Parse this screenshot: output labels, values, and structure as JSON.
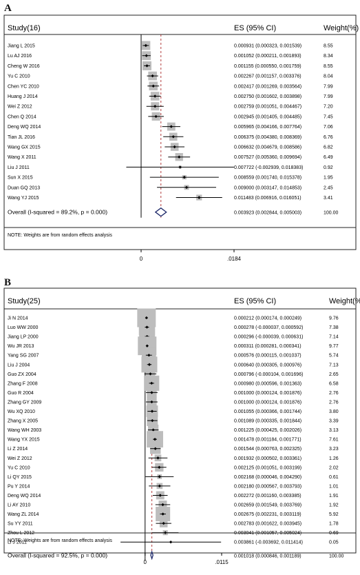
{
  "chart_data": [
    {
      "type": "forest",
      "panel_label": "A",
      "header": {
        "study": "Study(16)",
        "es": "ES (95% CI)",
        "weight": "Weight(%)"
      },
      "xticks": [
        "0",
        ".0184"
      ],
      "xtick_values": [
        0,
        0.0184
      ],
      "xlim": [
        -0.003,
        0.0184
      ],
      "overall_line": 0.003923,
      "studies": [
        {
          "name": "Jiang L 2015",
          "es": 0.000931,
          "lo": 0.000323,
          "hi": 0.001539,
          "ci": "0.000931 (0.000323, 0.001539)",
          "weight": "8.55"
        },
        {
          "name": "Lu AJ 2016",
          "es": 0.001052,
          "lo": 0.000211,
          "hi": 0.001893,
          "ci": "0.001052 (0.000211, 0.001893)",
          "weight": "8.34"
        },
        {
          "name": "Cheng W 2016",
          "es": 0.001155,
          "lo": 0.00055,
          "hi": 0.001759,
          "ci": "0.001155 (0.000550, 0.001759)",
          "weight": "8.55"
        },
        {
          "name": "Yu C 2010",
          "es": 0.002267,
          "lo": 0.001157,
          "hi": 0.003376,
          "ci": "0.002267 (0.001157, 0.003376)",
          "weight": "8.04"
        },
        {
          "name": "Chen YC 2010",
          "es": 0.002417,
          "lo": 0.001269,
          "hi": 0.003564,
          "ci": "0.002417 (0.001269, 0.003564)",
          "weight": "7.99"
        },
        {
          "name": "Huang J 2014",
          "es": 0.00275,
          "lo": 0.001602,
          "hi": 0.003898,
          "ci": "0.002750 (0.001602, 0.003898)",
          "weight": "7.99"
        },
        {
          "name": "Wei Z 2012",
          "es": 0.002759,
          "lo": 0.001051,
          "hi": 0.004467,
          "ci": "0.002759 (0.001051, 0.004467)",
          "weight": "7.20"
        },
        {
          "name": "Chen Q 2014",
          "es": 0.002945,
          "lo": 0.001405,
          "hi": 0.004485,
          "ci": "0.002945 (0.001405, 0.004485)",
          "weight": "7.45"
        },
        {
          "name": "Deng WQ 2014",
          "es": 0.005965,
          "lo": 0.004166,
          "hi": 0.007764,
          "ci": "0.005965 (0.004166, 0.007764)",
          "weight": "7.06"
        },
        {
          "name": "Tian JL 2016",
          "es": 0.006375,
          "lo": 0.00438,
          "hi": 0.008369,
          "ci": "0.006375 (0.004380, 0.008369)",
          "weight": "6.76"
        },
        {
          "name": "Wang GX 2015",
          "es": 0.006632,
          "lo": 0.004679,
          "hi": 0.008586,
          "ci": "0.006632 (0.004679, 0.008586)",
          "weight": "6.82"
        },
        {
          "name": "Wang X 2011",
          "es": 0.007527,
          "lo": 0.00536,
          "hi": 0.009694,
          "ci": "0.007527 (0.005360, 0.009694)",
          "weight": "6.49"
        },
        {
          "name": "Liu J 2011",
          "es": 0.007722,
          "lo": -0.002939,
          "hi": 0.018383,
          "ci": "0.007722 (-0.002939, 0.018383)",
          "weight": "0.92"
        },
        {
          "name": "Sun X 2015",
          "es": 0.008559,
          "lo": 0.00174,
          "hi": 0.015378,
          "ci": "0.008559 (0.001740, 0.015378)",
          "weight": "1.95"
        },
        {
          "name": "Duan GQ 2013",
          "es": 0.009,
          "lo": 0.003147,
          "hi": 0.014853,
          "ci": "0.009000 (0.003147, 0.014853)",
          "weight": "2.45"
        },
        {
          "name": "Wang YJ 2015",
          "es": 0.011483,
          "lo": 0.006916,
          "hi": 0.016051,
          "ci": "0.011483 (0.006916, 0.016051)",
          "weight": "3.41"
        }
      ],
      "overall": {
        "label": "Overall  (I-squared = 89.2%, p = 0.000)",
        "es": 0.003923,
        "lo": 0.002844,
        "hi": 0.005003,
        "ci": "0.003923 (0.002844, 0.005003)",
        "weight": "100.00"
      },
      "note": "NOTE: Weights are from random effects analysis"
    },
    {
      "type": "forest",
      "panel_label": "B",
      "header": {
        "study": "Study(25)",
        "es": "ES (95% CI)",
        "weight": "Weight(%)"
      },
      "xticks": [
        "0",
        ".0115"
      ],
      "xtick_values": [
        0,
        0.0115
      ],
      "xlim": [
        -0.0037,
        0.0115
      ],
      "overall_line": 0.001018,
      "studies": [
        {
          "name": "Ji N 2014",
          "es": 0.000212,
          "lo": 0.000174,
          "hi": 0.000249,
          "ci": "0.000212 (0.000174, 0.000249)",
          "weight": "9.76"
        },
        {
          "name": "Luo WW 2000",
          "es": 0.000278,
          "lo": -3.7e-05,
          "hi": 0.000592,
          "ci": "0.000278 (-0.000037, 0.000592)",
          "weight": "7.38"
        },
        {
          "name": "Jiang LP 2000",
          "es": 0.000296,
          "lo": -3.9e-05,
          "hi": 0.000631,
          "ci": "0.000296 (-0.000039, 0.000631)",
          "weight": "7.14"
        },
        {
          "name": "Wu JR 2013",
          "es": 0.000311,
          "lo": 0.000281,
          "hi": 0.000341,
          "ci": "0.000311 (0.000281, 0.000341)",
          "weight": "9.77"
        },
        {
          "name": "Yang SG 2007",
          "es": 0.000576,
          "lo": 0.000115,
          "hi": 0.001037,
          "ci": "0.000576 (0.000115, 0.001037)",
          "weight": "5.74"
        },
        {
          "name": "Liu J 2004",
          "es": 0.00064,
          "lo": 0.000305,
          "hi": 0.000976,
          "ci": "0.000640 (0.000305, 0.000976)",
          "weight": "7.13"
        },
        {
          "name": "Guo ZX 2004",
          "es": 0.000796,
          "lo": -0.000104,
          "hi": 0.001696,
          "ci": "0.000796 (-0.000104, 0.001696)",
          "weight": "2.65"
        },
        {
          "name": "Zhang F 2008",
          "es": 0.00098,
          "lo": 0.000596,
          "hi": 0.001363,
          "ci": "0.000980 (0.000596, 0.001363)",
          "weight": "6.58"
        },
        {
          "name": "Guo R 2004",
          "es": 0.001,
          "lo": 0.000124,
          "hi": 0.001876,
          "ci": "0.001000 (0.000124, 0.001876)",
          "weight": "2.76"
        },
        {
          "name": "Zhang GY 2009",
          "es": 0.001,
          "lo": 0.000124,
          "hi": 0.001876,
          "ci": "0.001000 (0.000124, 0.001876)",
          "weight": "2.76"
        },
        {
          "name": "Wu XQ 2010",
          "es": 0.001055,
          "lo": 0.000366,
          "hi": 0.001744,
          "ci": "0.001055 (0.000366, 0.001744)",
          "weight": "3.80"
        },
        {
          "name": "Zhang X 2005",
          "es": 0.001089,
          "lo": 0.000335,
          "hi": 0.001844,
          "ci": "0.001089 (0.000335, 0.001844)",
          "weight": "3.39"
        },
        {
          "name": "Wang WH 2003",
          "es": 0.001225,
          "lo": 0.000425,
          "hi": 0.002026,
          "ci": "0.001225 (0.000425, 0.002026)",
          "weight": "3.13"
        },
        {
          "name": "Wang YX 2015",
          "es": 0.001478,
          "lo": 0.001184,
          "hi": 0.001771,
          "ci": "0.001478 (0.001184, 0.001771)",
          "weight": "7.61"
        },
        {
          "name": "Li Z 2014",
          "es": 0.001544,
          "lo": 0.000763,
          "hi": 0.002325,
          "ci": "0.001544 (0.000763, 0.002325)",
          "weight": "3.23"
        },
        {
          "name": "Wei Z 2012",
          "es": 0.001932,
          "lo": 0.000502,
          "hi": 0.003361,
          "ci": "0.001932 (0.000502, 0.003361)",
          "weight": "1.26"
        },
        {
          "name": "Yu C 2010",
          "es": 0.002125,
          "lo": 0.001051,
          "hi": 0.003199,
          "ci": "0.002125 (0.001051, 0.003199)",
          "weight": "2.02"
        },
        {
          "name": "Li QY 2015",
          "es": 0.002168,
          "lo": 4.6e-05,
          "hi": 0.00429,
          "ci": "0.002168 (0.000046, 0.004290)",
          "weight": "0.61"
        },
        {
          "name": "Pu Y 2014",
          "es": 0.00218,
          "lo": 0.000567,
          "hi": 0.003793,
          "ci": "0.002180 (0.000567, 0.003793)",
          "weight": "1.01"
        },
        {
          "name": "Deng WQ 2014",
          "es": 0.002272,
          "lo": 0.00116,
          "hi": 0.003385,
          "ci": "0.002272 (0.001160, 0.003385)",
          "weight": "1.91"
        },
        {
          "name": "Li AY 2010",
          "es": 0.002659,
          "lo": 0.001549,
          "hi": 0.003769,
          "ci": "0.002659 (0.001549, 0.003769)",
          "weight": "1.92"
        },
        {
          "name": "Wang ZL 2014",
          "es": 0.002675,
          "lo": 0.002231,
          "hi": 0.003119,
          "ci": "0.002675 (0.002231, 0.003119)",
          "weight": "5.92"
        },
        {
          "name": "Su YY 2011",
          "es": 0.002783,
          "lo": 0.001622,
          "hi": 0.003945,
          "ci": "0.002783 (0.001622, 0.003945)",
          "weight": "1.78"
        },
        {
          "name": "Zhou L 2012",
          "es": 0.003041,
          "lo": 0.001057,
          "hi": 0.005024,
          "ci": "0.003041 (0.001057, 0.005024)",
          "weight": "0.69"
        },
        {
          "name": "Li J 2011",
          "es": 0.003861,
          "lo": -0.003692,
          "hi": 0.011414,
          "ci": "0.003861 (-0.003692, 0.011414)",
          "weight": "0.05"
        }
      ],
      "overall": {
        "label": "Overall  (I-squared = 92.5%, p = 0.000)",
        "es": 0.001018,
        "lo": 0.000846,
        "hi": 0.001189,
        "ci": "0.001018 (0.000846, 0.001189)",
        "weight": "100.00"
      },
      "note": "NOTE: Weights are from random effects analysis"
    }
  ]
}
